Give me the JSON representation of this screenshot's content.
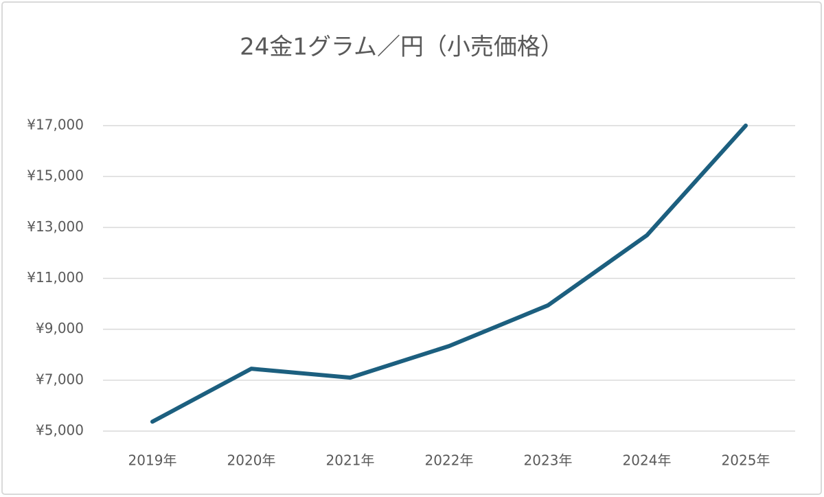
{
  "chart_data": {
    "type": "line",
    "title": "24金1グラム／円（小売価格）",
    "categories": [
      "2019年",
      "2020年",
      "2021年",
      "2022年",
      "2023年",
      "2024年",
      "2025年"
    ],
    "series": [
      {
        "name": "24金1グラム／円",
        "color": "#1c5f7f",
        "values": [
          5370,
          7450,
          7100,
          8340,
          9940,
          12690,
          17000
        ]
      }
    ],
    "ylim": [
      5000,
      17000
    ],
    "yticks": [
      {
        "value": 5000,
        "label": "¥5,000"
      },
      {
        "value": 7000,
        "label": "¥7,000"
      },
      {
        "value": 9000,
        "label": "¥9,000"
      },
      {
        "value": 11000,
        "label": "¥11,000"
      },
      {
        "value": 13000,
        "label": "¥13,000"
      },
      {
        "value": 15000,
        "label": "¥15,000"
      },
      {
        "value": 17000,
        "label": "¥17,000"
      }
    ],
    "grid": true
  }
}
